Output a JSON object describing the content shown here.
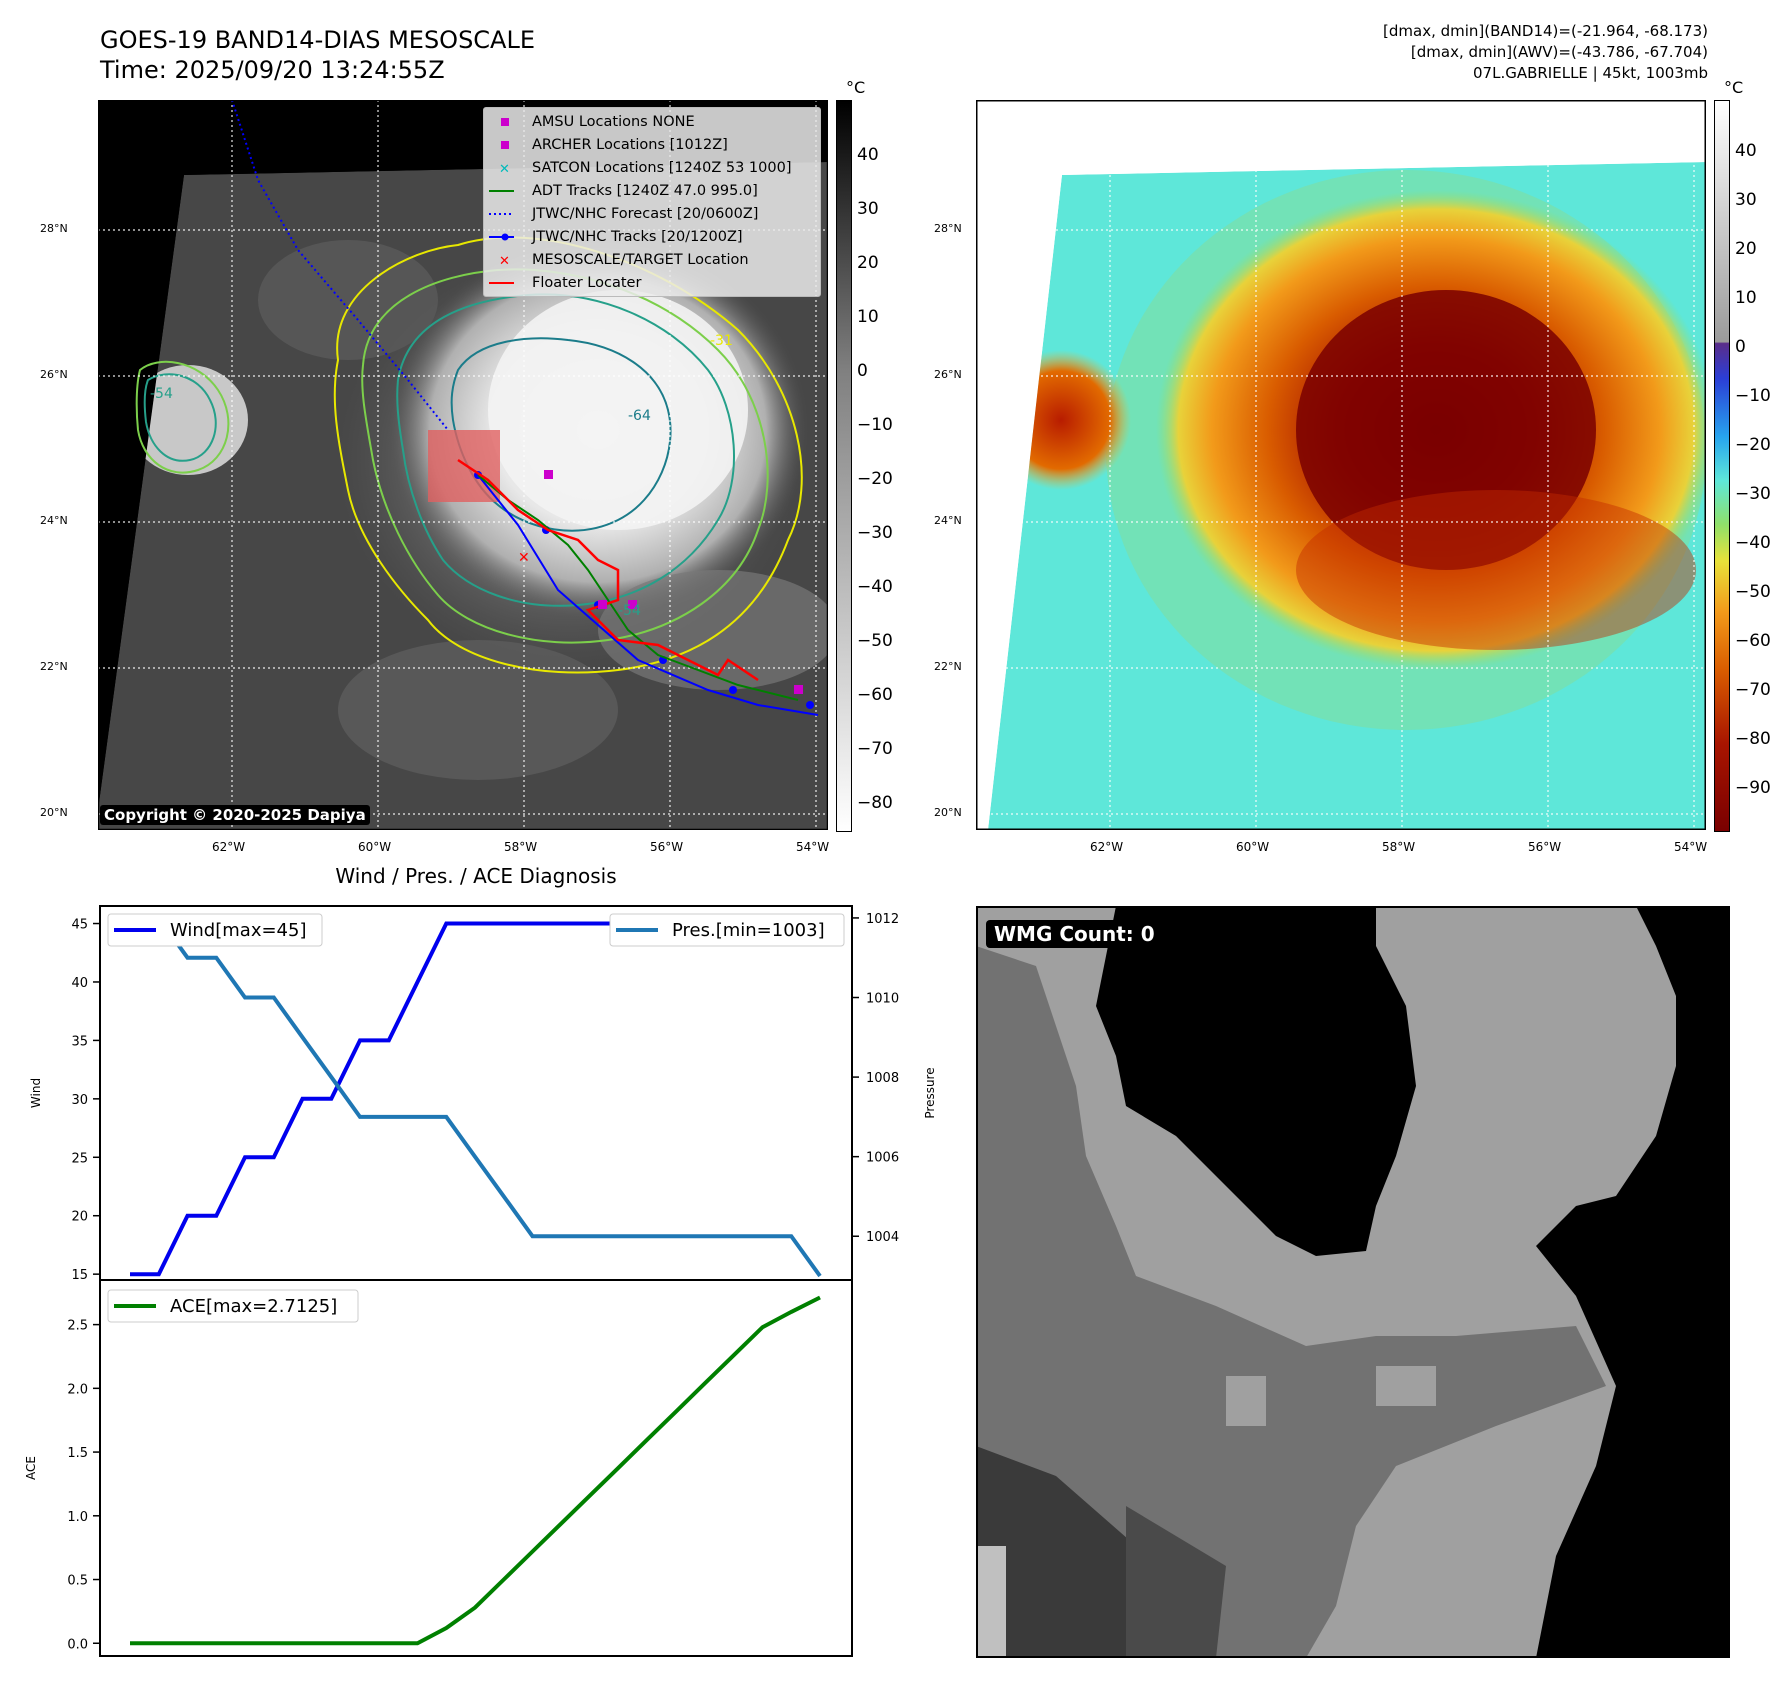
{
  "header": {
    "title": "GOES-19 BAND14-DIAS MESOSCALE",
    "time": "Time: 2025/09/20 13:24:55Z",
    "info_lines": [
      "[dmax, dmin](BAND14)=(-21.964, -68.173)",
      "[dmax, dmin](AWV)=(-43.786, -67.704)",
      "07L.GABRIELLE | 45kt, 1003mb"
    ]
  },
  "map": {
    "lat_labels": [
      "28°N",
      "26°N",
      "24°N",
      "22°N",
      "20°N"
    ],
    "lon_labels": [
      "62°W",
      "60°W",
      "58°W",
      "56°W",
      "54°W"
    ],
    "copyright": "Copyright © 2020-2025 Dapiya",
    "contour_labels": [
      "-54",
      "-64",
      "-31",
      "-54"
    ],
    "legend": [
      {
        "label": "AMSU Locations NONE",
        "marker": "square",
        "color": "#cc00cc"
      },
      {
        "label": "ARCHER Locations [1012Z]",
        "marker": "square",
        "color": "#cc00cc"
      },
      {
        "label": "SATCON Locations [1240Z 53 1000]",
        "marker": "x",
        "color": "#00bbbb"
      },
      {
        "label": "ADT Tracks [1240Z 47.0 995.0]",
        "marker": "line",
        "color": "#008000"
      },
      {
        "label": "JTWC/NHC Forecast [20/0600Z]",
        "marker": "dotted",
        "color": "#0000ff"
      },
      {
        "label": "JTWC/NHC Tracks [20/1200Z]",
        "marker": "line-dot",
        "color": "#0000ff"
      },
      {
        "label": "MESOSCALE/TARGET Location",
        "marker": "x",
        "color": "#ff0000"
      },
      {
        "label": "Floater Locater",
        "marker": "line",
        "color": "#ff0000"
      }
    ]
  },
  "colorbar_gray": {
    "unit": "°C",
    "ticks": [
      "40",
      "30",
      "20",
      "10",
      "0",
      "−10",
      "−20",
      "−30",
      "−40",
      "−50",
      "−60",
      "−70",
      "−80"
    ]
  },
  "colorbar_color": {
    "unit": "°C",
    "ticks": [
      "40",
      "30",
      "20",
      "10",
      "0",
      "−10",
      "−20",
      "−30",
      "−40",
      "−50",
      "−60",
      "−70",
      "−80",
      "−90"
    ]
  },
  "wmg": {
    "label": "WMG Count: 0"
  },
  "chart_data": [
    {
      "type": "line",
      "title": "Wind / Pres. / ACE Diagnosis",
      "ylabel": "Wind",
      "y2label": "Pressure",
      "x": [
        0,
        1,
        2,
        3,
        4,
        5,
        6,
        7,
        8,
        9,
        10,
        11,
        12,
        13,
        14,
        15,
        16,
        17,
        18,
        19,
        20,
        21,
        22,
        23,
        24
      ],
      "ylim": [
        14.5,
        46.5
      ],
      "y2lim": [
        1002.9,
        1012.3
      ],
      "yticks": [
        "15",
        "20",
        "25",
        "30",
        "35",
        "40",
        "45"
      ],
      "y2ticks": [
        "1004",
        "1006",
        "1008",
        "1010",
        "1012"
      ],
      "series": [
        {
          "name": "Wind[max=45]",
          "color": "#0000ee",
          "axis": "left",
          "values": [
            15,
            15,
            20,
            20,
            25,
            25,
            30,
            30,
            35,
            35,
            40,
            45,
            45,
            45,
            45,
            45,
            45,
            45,
            45,
            45,
            45,
            45,
            45,
            45,
            45
          ]
        },
        {
          "name": "Pres.[min=1003]",
          "color": "#1f77b4",
          "axis": "right",
          "values": [
            1012,
            1012,
            1011,
            1011,
            1010,
            1010,
            1009,
            1008,
            1007,
            1007,
            1007,
            1007,
            1006,
            1005,
            1004,
            1004,
            1004,
            1004,
            1004,
            1004,
            1004,
            1004,
            1004,
            1004,
            1003
          ]
        }
      ]
    },
    {
      "type": "line",
      "ylabel": "ACE",
      "x": [
        0,
        1,
        2,
        3,
        4,
        5,
        6,
        7,
        8,
        9,
        10,
        11,
        12,
        13,
        14,
        15,
        16,
        17,
        18,
        19,
        20,
        21,
        22,
        23,
        24
      ],
      "ylim": [
        -0.1,
        2.85
      ],
      "yticks": [
        "0.0",
        "0.5",
        "1.0",
        "1.5",
        "2.0",
        "2.5"
      ],
      "series": [
        {
          "name": "ACE[max=2.7125]",
          "color": "#008000",
          "axis": "left",
          "values": [
            0,
            0,
            0,
            0,
            0,
            0,
            0,
            0,
            0,
            0,
            0,
            0.12,
            0.28,
            0.5,
            0.72,
            0.94,
            1.16,
            1.38,
            1.6,
            1.82,
            2.04,
            2.26,
            2.48,
            2.6,
            2.7125
          ]
        }
      ]
    }
  ]
}
